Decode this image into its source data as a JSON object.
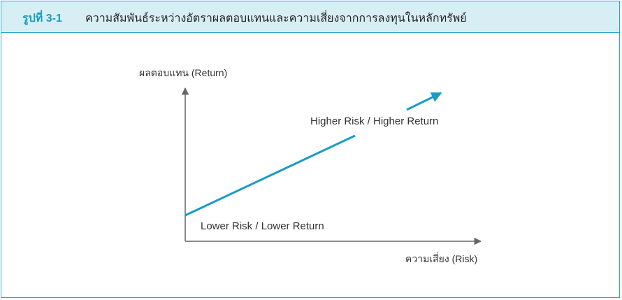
{
  "figure": {
    "number": "รูปที่ 3-1",
    "title": "ความสัมพันธ์ระหว่างอัตราผลตอบแทนและความเสี่ยงจากการลงทุนในหลักทรัพย์"
  },
  "diagram": {
    "y_axis_label": "ผลตอบแทน (Return)",
    "x_axis_label": "ความเสี่ยง (Risk)",
    "high_label": "Higher Risk / Higher Return",
    "low_label": "Lower Risk / Lower Return"
  },
  "colors": {
    "accent": "#1a9cc4",
    "header_bg": "#d8eef5",
    "axis": "#666666"
  }
}
